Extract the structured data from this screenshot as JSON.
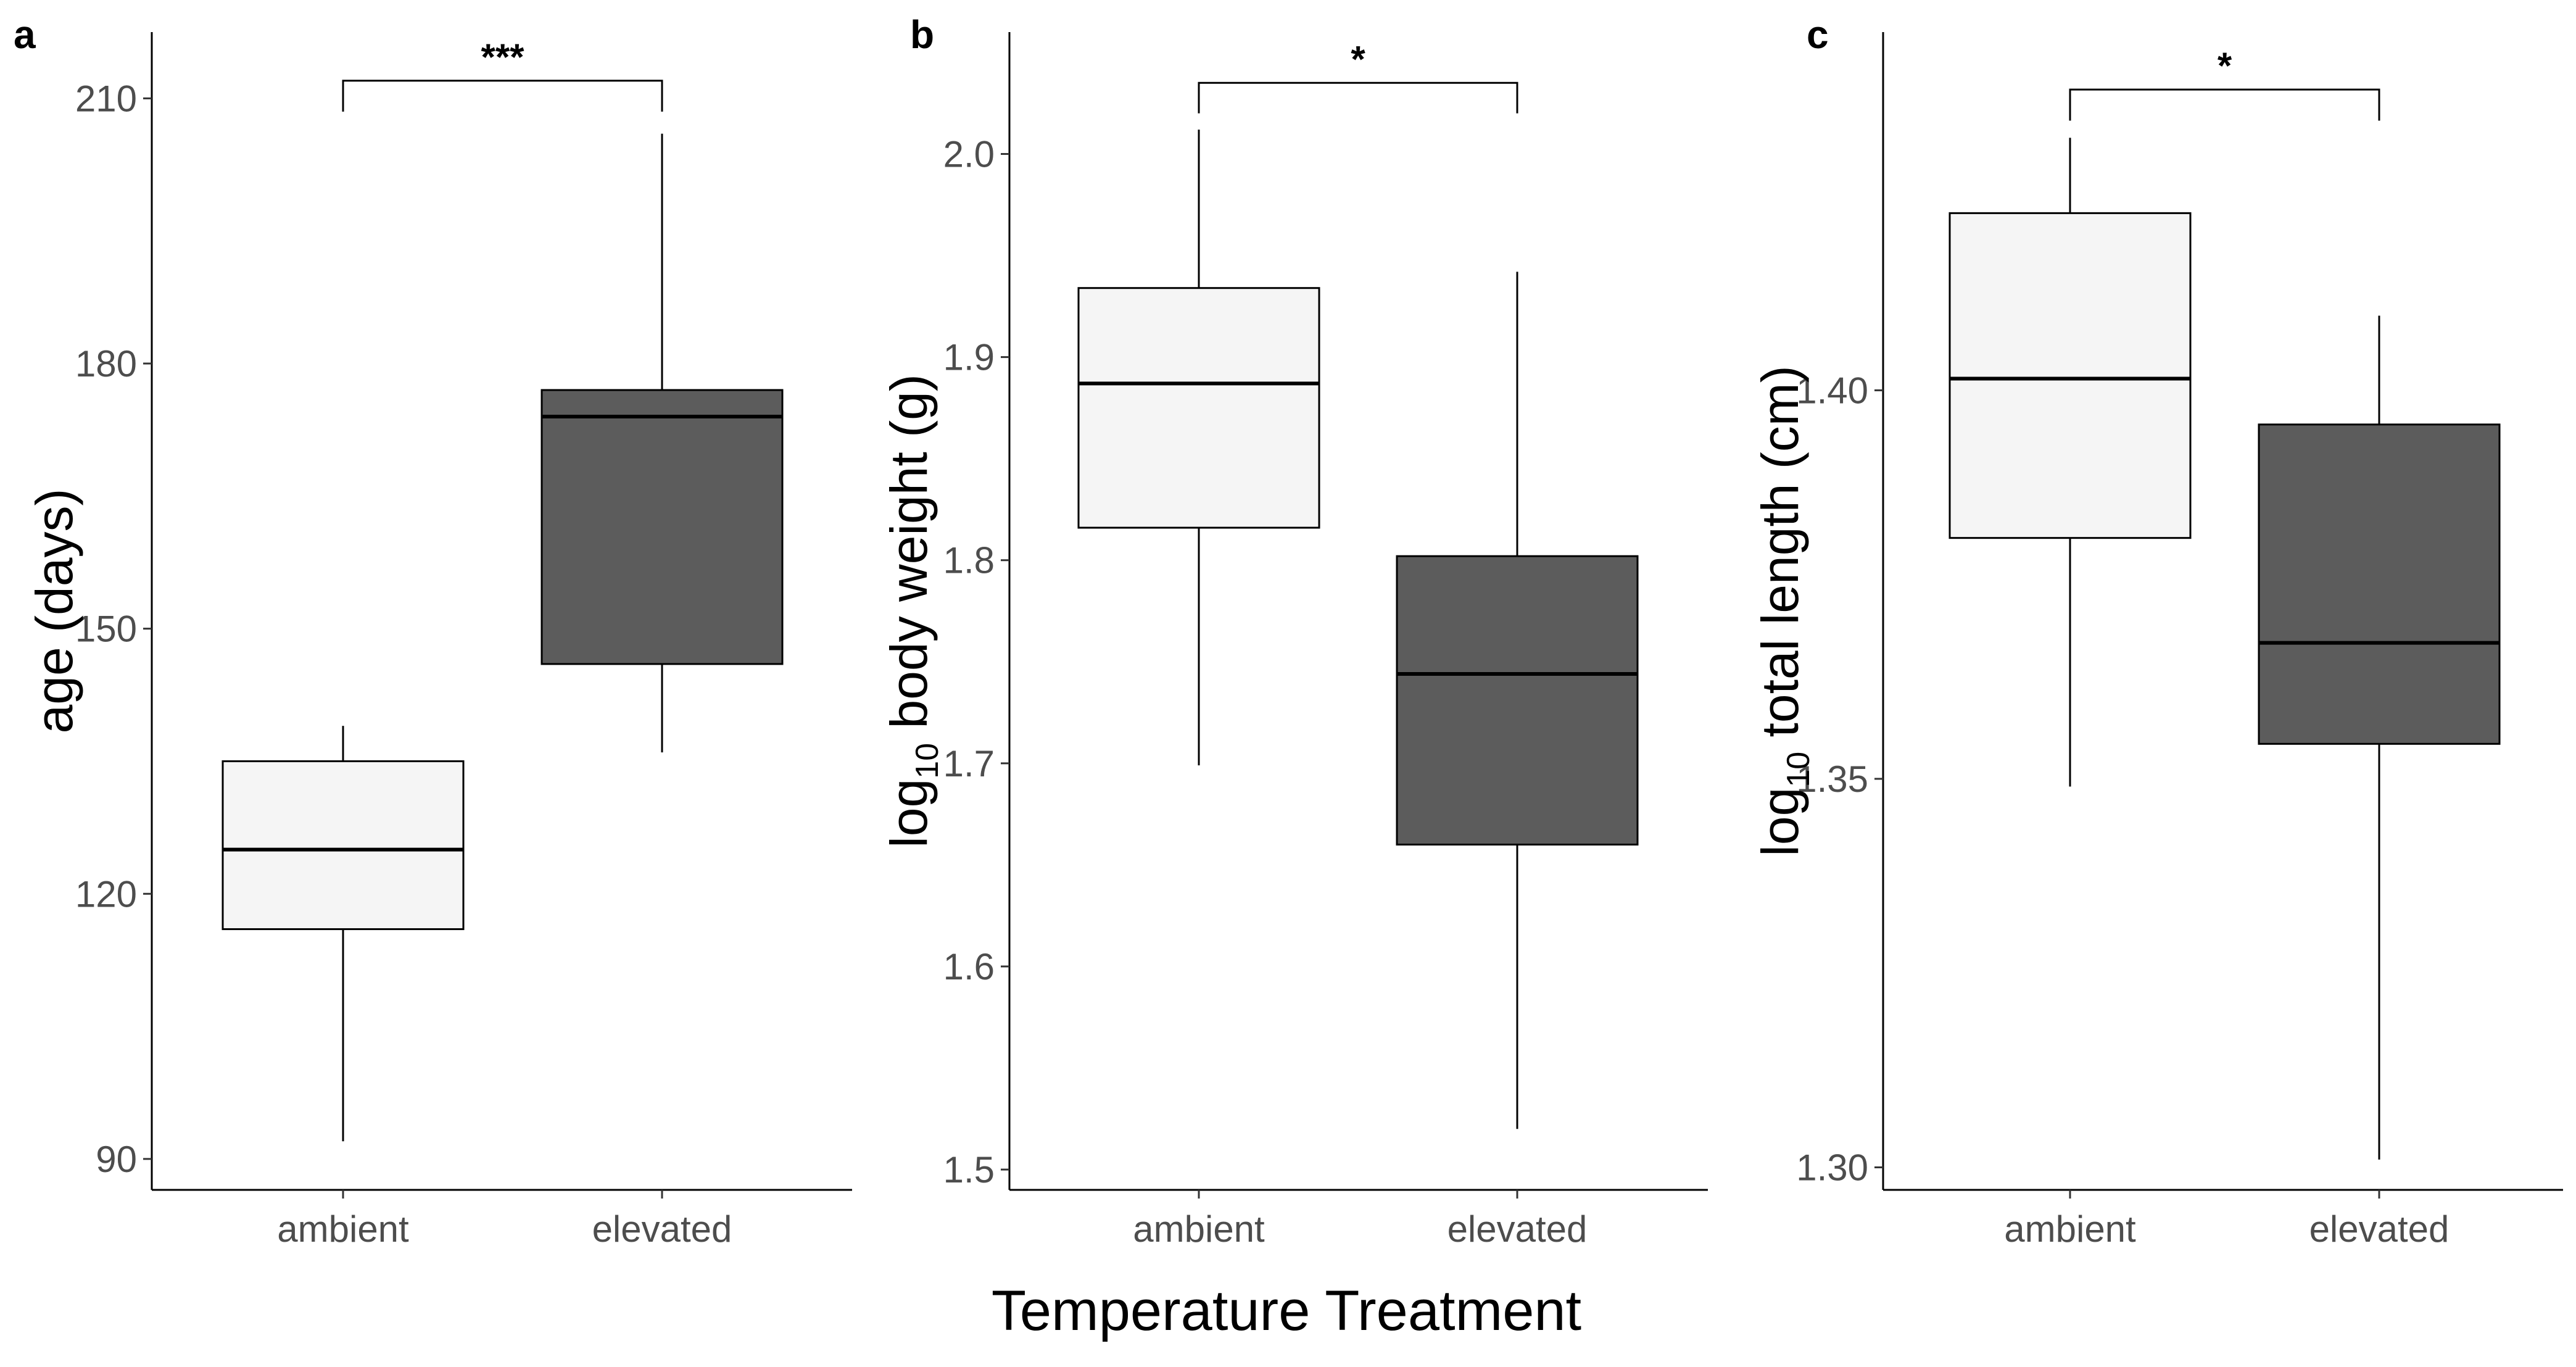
{
  "chart_data": {
    "shared_xlabel": "Temperature Treatment",
    "categories": [
      "ambient",
      "elevated"
    ],
    "colors": {
      "ambient": "#f5f5f5",
      "elevated": "#5c5c5c"
    },
    "panels": [
      {
        "letter": "a",
        "type": "box",
        "ylabel_parts": [
          "age (days)"
        ],
        "ylim": [
          86.5,
          217.5
        ],
        "yticks": [
          "90",
          "120",
          "150",
          "180",
          "210"
        ],
        "boxes": [
          {
            "category": "ambient",
            "min": 92,
            "q1": 116,
            "median": 125,
            "q3": 135,
            "max": 139
          },
          {
            "category": "elevated",
            "min": 136,
            "q1": 146,
            "median": 174,
            "q3": 177,
            "max": 206
          }
        ],
        "significance": {
          "label": "***",
          "y": 212,
          "tip": 208.5
        }
      },
      {
        "letter": "b",
        "type": "box",
        "ylabel_parts": [
          "log",
          "10",
          "body weight (g)"
        ],
        "ylim": [
          1.49,
          2.06
        ],
        "yticks": [
          "1.5",
          "1.6",
          "1.7",
          "1.8",
          "1.9",
          "2.0"
        ],
        "boxes": [
          {
            "category": "ambient",
            "min": 1.699,
            "q1": 1.816,
            "median": 1.887,
            "q3": 1.934,
            "max": 2.012
          },
          {
            "category": "elevated",
            "min": 1.52,
            "q1": 1.66,
            "median": 1.744,
            "q3": 1.802,
            "max": 1.942
          }
        ],
        "significance": {
          "label": "*",
          "y": 2.035,
          "tip": 2.02
        }
      },
      {
        "letter": "c",
        "type": "box",
        "ylabel_parts": [
          "log",
          "10",
          "total length (cm)"
        ],
        "ylim": [
          1.2971,
          1.4461
        ],
        "yticks": [
          "1.30",
          "1.35",
          "1.40"
        ],
        "boxes": [
          {
            "category": "ambient",
            "min": 1.349,
            "q1": 1.381,
            "median": 1.4015,
            "q3": 1.4228,
            "max": 1.4325
          },
          {
            "category": "elevated",
            "min": 1.301,
            "q1": 1.3545,
            "median": 1.3675,
            "q3": 1.3956,
            "max": 1.4096
          }
        ],
        "significance": {
          "label": "*",
          "y": 1.4387,
          "tip": 1.4347
        }
      }
    ]
  }
}
